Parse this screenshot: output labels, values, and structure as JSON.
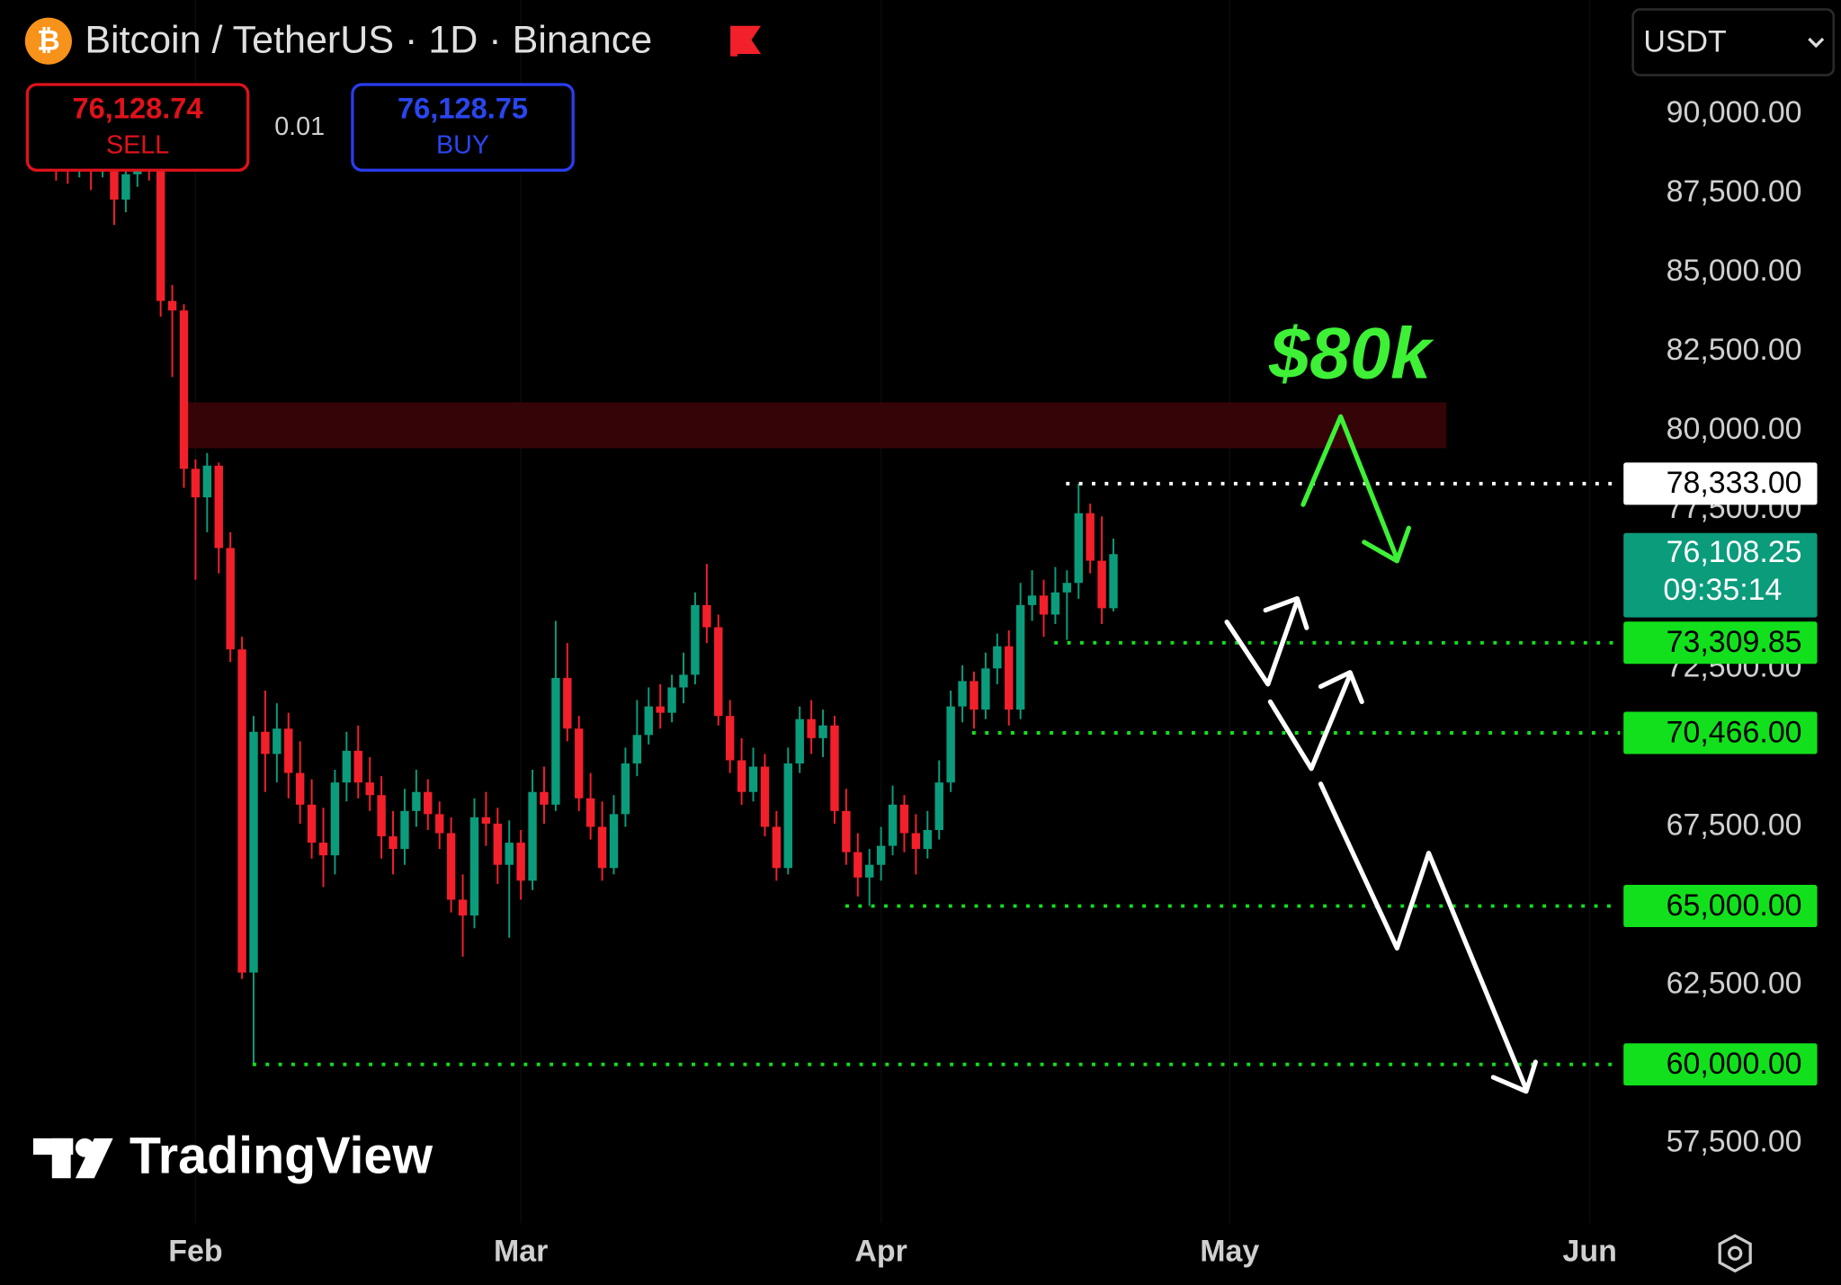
{
  "header": {
    "sell_price": "76,128.74",
    "sell": "SELL",
    "spread": "0.01",
    "buy_price": "76,128.75",
    "buy": "BUY",
    "currency": "USDT",
    "watermark": "TradingView"
  },
  "chart_data": {
    "type": "candlestick",
    "title": "Bitcoin / TetherUS · 1D · Binance",
    "up_color": "#0b9c7c",
    "down_color": "#f2202a",
    "x": [
      20,
      21,
      22,
      23,
      24,
      25,
      26,
      27,
      28,
      29,
      30,
      31,
      32,
      33,
      34,
      35,
      36,
      37,
      38,
      39,
      40,
      41,
      42,
      43,
      44,
      45,
      46,
      47,
      48,
      49,
      50,
      51,
      52,
      53,
      54,
      55,
      56,
      57,
      58,
      59,
      60,
      61,
      62,
      63,
      64,
      65,
      66,
      67,
      68,
      69,
      70,
      71,
      72,
      73,
      74,
      75,
      76,
      77,
      78,
      79,
      80,
      81,
      82,
      83,
      84,
      85,
      86,
      87,
      88,
      89,
      90,
      91,
      92,
      93,
      94,
      95,
      96,
      97,
      98,
      99,
      100,
      101,
      102,
      103,
      104,
      105,
      106,
      107,
      108,
      109,
      110,
      111
    ],
    "open": [
      88700,
      88600,
      88300,
      88900,
      88400,
      88700,
      87300,
      88100,
      88500,
      88200,
      84100,
      83800,
      78800,
      77900,
      78900,
      76300,
      73100,
      62900,
      70500,
      69800,
      70600,
      69200,
      68200,
      67000,
      66600,
      68900,
      69900,
      68900,
      68500,
      67200,
      66800,
      68000,
      68600,
      67900,
      67300,
      65200,
      64700,
      67800,
      67600,
      66300,
      67000,
      65800,
      68600,
      68200,
      72200,
      70600,
      68400,
      67500,
      66200,
      67900,
      69500,
      70400,
      71300,
      71100,
      71900,
      72300,
      74500,
      73800,
      71000,
      69600,
      68600,
      69400,
      67500,
      66200,
      69500,
      70900,
      70300,
      70700,
      68000,
      66700,
      65900,
      66300,
      66900,
      68200,
      67300,
      66800,
      67400,
      68900,
      71300,
      72100,
      71200,
      72500,
      73200,
      71200,
      74500,
      74800,
      74200,
      74900,
      75200,
      77400,
      75900,
      74400
    ],
    "high": [
      89500,
      89200,
      89400,
      89300,
      89100,
      88900,
      88500,
      89000,
      89300,
      88600,
      84600,
      84000,
      79100,
      79300,
      79000,
      76800,
      73500,
      71000,
      71800,
      71400,
      71100,
      70200,
      69000,
      68100,
      69300,
      70500,
      70700,
      69700,
      69100,
      68000,
      68700,
      69300,
      69000,
      68300,
      67800,
      66000,
      68400,
      68600,
      68100,
      67700,
      67400,
      69300,
      69400,
      74000,
      73300,
      71000,
      69200,
      68300,
      68500,
      70000,
      71500,
      71900,
      72000,
      72300,
      73000,
      74900,
      75800,
      74200,
      71500,
      70300,
      70000,
      69800,
      68000,
      70000,
      71300,
      71500,
      71200,
      71000,
      68700,
      67300,
      66800,
      67500,
      68800,
      68500,
      67900,
      68000,
      69600,
      71800,
      72600,
      72400,
      73000,
      73600,
      73700,
      75200,
      75600,
      75300,
      75700,
      75600,
      78333,
      77700,
      77300,
      76600
    ],
    "low": [
      87900,
      87800,
      88000,
      87600,
      88000,
      86500,
      86900,
      87700,
      87900,
      83600,
      81700,
      78200,
      75300,
      76800,
      75500,
      72700,
      62700,
      60000,
      68600,
      68900,
      68400,
      67600,
      66500,
      65600,
      66000,
      68300,
      68400,
      68000,
      66500,
      66000,
      66300,
      67500,
      67400,
      66800,
      64800,
      63400,
      64300,
      66900,
      65700,
      64000,
      65200,
      65500,
      67600,
      68000,
      70200,
      68000,
      67100,
      65800,
      66000,
      67500,
      69100,
      70100,
      70600,
      70800,
      71400,
      72000,
      73300,
      70700,
      69200,
      68200,
      68300,
      67200,
      65800,
      66000,
      69200,
      69800,
      69700,
      67600,
      66300,
      65300,
      65000,
      65800,
      66600,
      66700,
      66000,
      66500,
      67100,
      68600,
      70800,
      70600,
      70900,
      72000,
      70700,
      70900,
      74000,
      73500,
      73900,
      73400,
      74700,
      75500,
      73900,
      74300
    ],
    "close": [
      88600,
      88300,
      88900,
      88400,
      88700,
      87300,
      88100,
      88500,
      88200,
      84100,
      83800,
      78800,
      77900,
      78900,
      76300,
      73100,
      62900,
      70500,
      69800,
      70600,
      69200,
      68200,
      67000,
      66600,
      68900,
      69900,
      68900,
      68500,
      67200,
      66800,
      68000,
      68600,
      67900,
      67300,
      65200,
      64700,
      67800,
      67600,
      66300,
      67000,
      65800,
      68600,
      68200,
      72200,
      70600,
      68400,
      67500,
      66200,
      67900,
      69500,
      70400,
      71300,
      71100,
      71900,
      72300,
      74500,
      73800,
      71000,
      69600,
      68600,
      69400,
      67500,
      66200,
      69500,
      70900,
      70300,
      70700,
      68000,
      66700,
      65900,
      66300,
      66900,
      68200,
      67300,
      66800,
      67400,
      68900,
      71300,
      72100,
      71200,
      72500,
      73200,
      71200,
      74500,
      74800,
      74200,
      74900,
      75200,
      77400,
      75900,
      74400,
      76108.25
    ],
    "xlim": [
      15.2,
      154.6
    ],
    "xticks": [
      {
        "value": 32,
        "label": "Feb"
      },
      {
        "value": 60,
        "label": "Mar"
      },
      {
        "value": 91,
        "label": "Apr"
      },
      {
        "value": 121,
        "label": "May"
      },
      {
        "value": 152,
        "label": "Jun"
      }
    ],
    "ylim": [
      55000,
      93600
    ],
    "yticks": [
      {
        "value": 57500,
        "label": "57,500.00"
      },
      {
        "value": 62500,
        "label": "62,500.00"
      },
      {
        "value": 67500,
        "label": "67,500.00"
      },
      {
        "value": 72500,
        "label": "72,500.00"
      },
      {
        "value": 77500,
        "label": "77,500.00"
      },
      {
        "value": 80000,
        "label": "80,000.00"
      },
      {
        "value": 82500,
        "label": "82,500.00"
      },
      {
        "value": 85000,
        "label": "85,000.00"
      },
      {
        "value": 87500,
        "label": "87,500.00"
      },
      {
        "value": 90000,
        "label": "90,000.00"
      }
    ],
    "zone": [
      79450,
      80900
    ],
    "zone_color": "#3e0507",
    "annotation": "$80k",
    "annotation_color": "#3ef036",
    "levels": [
      {
        "value": 78333,
        "label": "78,333.00",
        "color": "#ffffff"
      },
      {
        "value": 73309.85,
        "label": "73,309.85",
        "color": "#12e01c"
      },
      {
        "value": 70466,
        "label": "70,466.00",
        "color": "#12e01c"
      },
      {
        "value": 65000,
        "label": "65,000.00",
        "color": "#12e01c"
      },
      {
        "value": 60000,
        "label": "60,000.00",
        "color": "#12e01c"
      }
    ],
    "last_price": {
      "value": 76108.25,
      "label": "76,108.25"
    },
    "countdown": "09:35:14"
  }
}
